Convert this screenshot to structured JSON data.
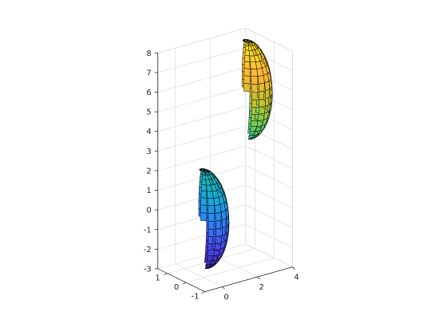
{
  "chart_data": {
    "type": "surface",
    "title": "",
    "xlabel": "",
    "ylabel": "",
    "zlabel": "",
    "xlim": [
      -1,
      4
    ],
    "ylim": [
      -1,
      1.5
    ],
    "zlim": [
      -3,
      8
    ],
    "x_ticks": [
      "0",
      "2",
      "4"
    ],
    "y_ticks": [
      "-1",
      "0",
      "1"
    ],
    "z_ticks": [
      "-3",
      "-2",
      "-1",
      "0",
      "1",
      "2",
      "3",
      "4",
      "5",
      "6",
      "7",
      "8"
    ],
    "grid": true,
    "colormap": [
      "#3e26a8",
      "#4a43e8",
      "#2f80f5",
      "#19a8d8",
      "#20c0a0",
      "#6ccd5a",
      "#c8c02c",
      "#fcb33d",
      "#f9e51f"
    ],
    "surfaces": [
      {
        "shape": "ellipsoid",
        "center": [
          0,
          0,
          0
        ],
        "radii": [
          1,
          1,
          2.5
        ]
      },
      {
        "shape": "ellipsoid",
        "center": [
          3,
          0.5,
          5.6
        ],
        "radii": [
          1,
          1,
          2.5
        ]
      }
    ]
  }
}
